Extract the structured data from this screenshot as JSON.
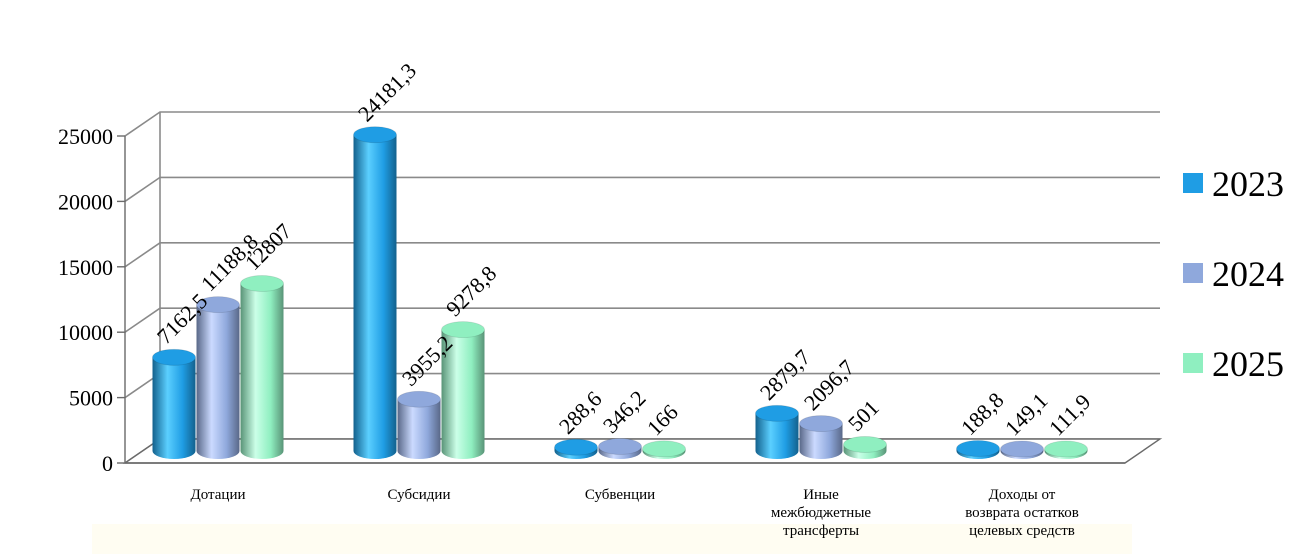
{
  "chart_data": {
    "type": "bar",
    "categories": [
      [
        "Дотации"
      ],
      [
        "Субсидии"
      ],
      [
        "Субвенции"
      ],
      [
        "Иные",
        "межбюджетные",
        "трансферты"
      ],
      [
        "Доходы от",
        "возврата остатков",
        "целевых средств"
      ]
    ],
    "series": [
      {
        "name": "2023",
        "values": [
          7162.5,
          24181.3,
          288.6,
          2879.7,
          188.8
        ],
        "labels": [
          "7162,5",
          "24181,3",
          "288,6",
          "2879,7",
          "188,8"
        ],
        "color": "#1f9de4"
      },
      {
        "name": "2024",
        "values": [
          11188.8,
          3955.2,
          346.2,
          2096.7,
          149.1
        ],
        "labels": [
          "11188,8",
          "3955,2",
          "346,2",
          "2096,7",
          "149,1"
        ],
        "color": "#8fa8dc"
      },
      {
        "name": "2025",
        "values": [
          12807,
          9278.8,
          166,
          501,
          111.9
        ],
        "labels": [
          "12807",
          "9278,8",
          "166",
          "501",
          "111,9"
        ],
        "color": "#8fefc0"
      }
    ],
    "yticks": [
      "0",
      "5000",
      "10000",
      "15000",
      "20000",
      "25000"
    ],
    "ylim": [
      0,
      25000
    ],
    "legend": "right",
    "grid": true
  }
}
